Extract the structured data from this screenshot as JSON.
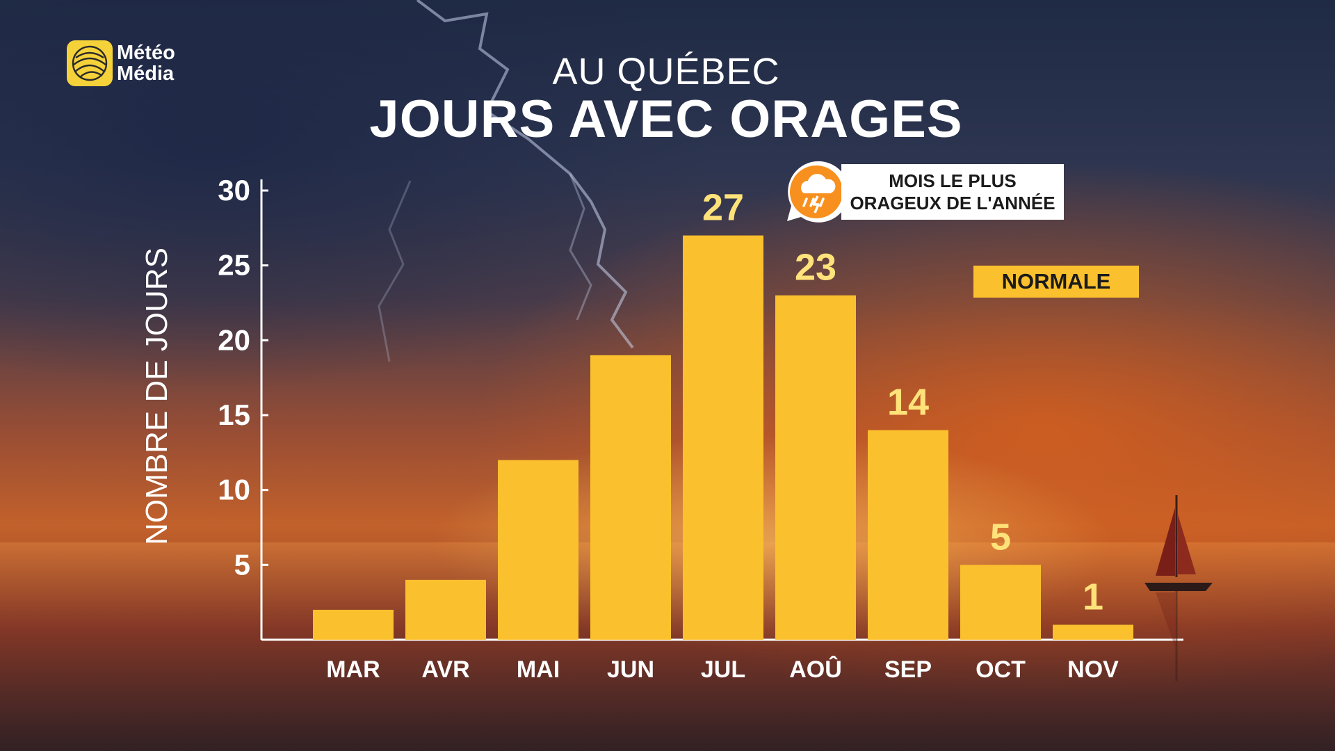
{
  "brand": {
    "logo_line1": "Météo",
    "logo_line2": "Média"
  },
  "colors": {
    "bar": "#fbc02d",
    "value_label": "#ffe37a",
    "axis": "#ffffff",
    "callout_bg": "#ffffff",
    "icon_orange": "#f7901e"
  },
  "callout": {
    "line1": "MOIS LE PLUS",
    "line2": "ORAGEUX DE L'ANNÉE",
    "icon": "storm-cloud-icon"
  },
  "legend": {
    "label": "NORMALE"
  },
  "chart_data": {
    "type": "bar",
    "title": "JOURS AVEC ORAGES",
    "subtitle": "AU QUÉBEC",
    "xlabel": "",
    "ylabel": "NOMBRE DE JOURS",
    "categories": [
      "MAR",
      "AVR",
      "MAI",
      "JUN",
      "JUL",
      "AOÛ",
      "SEP",
      "OCT",
      "NOV"
    ],
    "values": [
      2,
      4,
      12,
      19,
      27,
      23,
      14,
      5,
      1
    ],
    "value_labels": [
      "",
      "",
      "",
      "",
      "27",
      "23",
      "14",
      "5",
      "1"
    ],
    "ylim": [
      0,
      30
    ],
    "yticks": [
      5,
      10,
      15,
      20,
      25,
      30
    ],
    "series": [
      {
        "name": "NORMALE",
        "values": [
          2,
          4,
          12,
          19,
          27,
          23,
          14,
          5,
          1
        ]
      }
    ],
    "grid": false,
    "legend_position": "top-right"
  }
}
